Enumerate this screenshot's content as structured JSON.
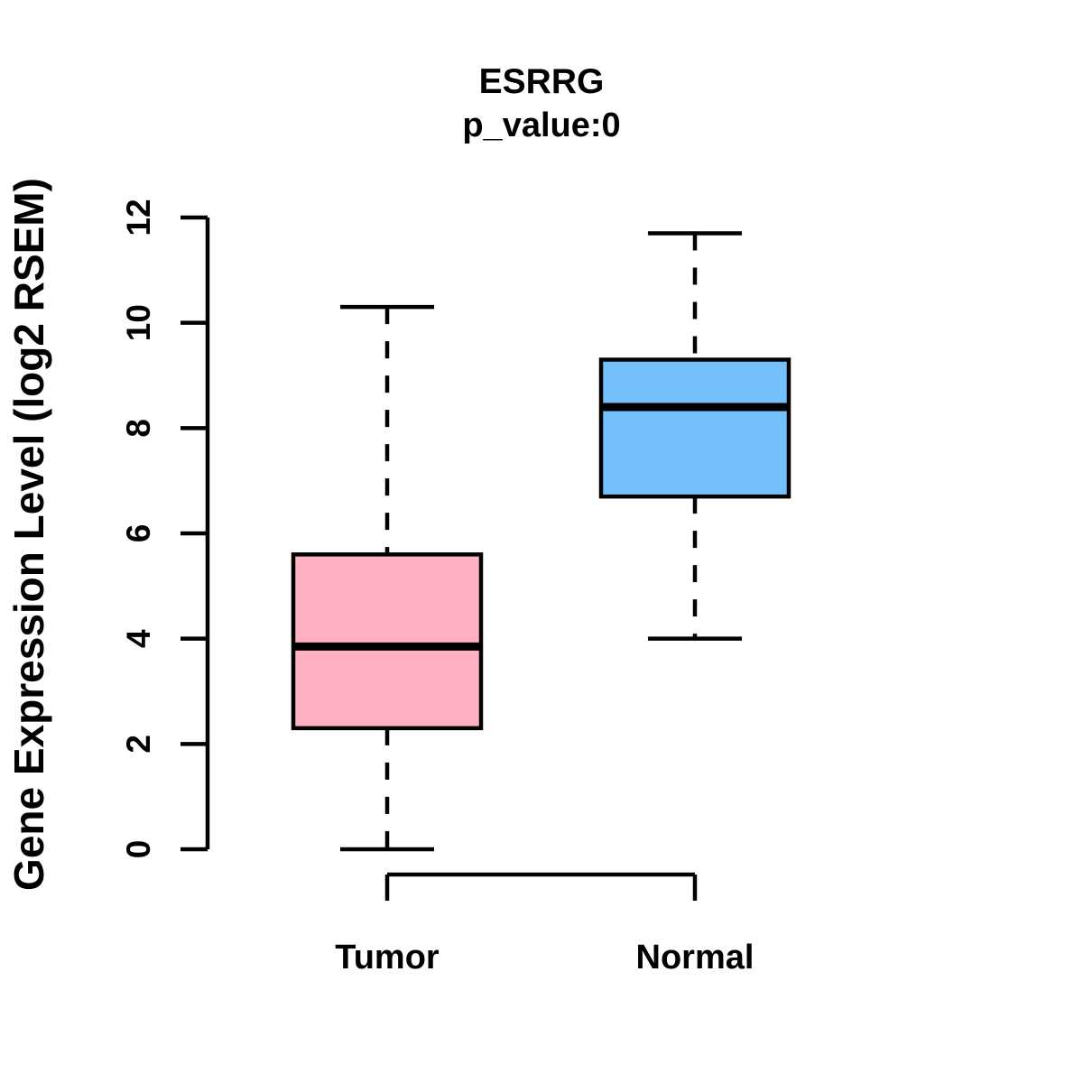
{
  "figure": {
    "title": "ESRRG",
    "subtitle": "p_value:0",
    "ylabel": "Gene Expression Level (log2 RSEM)"
  },
  "colors": {
    "tumor_fill": "#FFB1C1",
    "normal_fill": "#74C0FA",
    "line": "#000000",
    "background": "#FFFFFF"
  },
  "chart_data": {
    "type": "boxplot",
    "title": "ESRRG",
    "subtitle": "p_value:0",
    "xlabel": "",
    "ylabel": "Gene Expression Level (log2 RSEM)",
    "ylim": [
      0,
      12
    ],
    "yticks": [
      0,
      2,
      4,
      6,
      8,
      10,
      12
    ],
    "grid": "off",
    "legend": "none",
    "categories": [
      "Tumor",
      "Normal"
    ],
    "series": [
      {
        "name": "Tumor",
        "color": "#FFB1C1",
        "whisker_low": 0.0,
        "q1": 2.3,
        "median": 3.85,
        "q3": 5.6,
        "whisker_high": 10.3,
        "outliers": []
      },
      {
        "name": "Normal",
        "color": "#74C0FA",
        "whisker_low": 4.0,
        "q1": 6.7,
        "median": 8.4,
        "q3": 9.3,
        "whisker_high": 11.7,
        "outliers": []
      }
    ]
  }
}
